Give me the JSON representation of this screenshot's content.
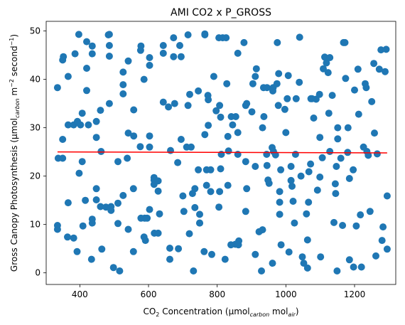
{
  "chart_data": {
    "type": "scatter",
    "title": "AMI CO2 x P_GROSS",
    "xlabel": "CO2 Concentration (µmol_carbon mol_air)",
    "ylabel": "Gross Canopy Photosynthesis (µmol_carbon m^-2 second^-1)",
    "xlim": [
      302,
      1320
    ],
    "ylim": [
      -2.4,
      52
    ],
    "xticks": [
      "400",
      "600",
      "800",
      "1000",
      "1200"
    ],
    "yticks": [
      "0",
      "10",
      "20",
      "30",
      "40",
      "50"
    ],
    "grid": false,
    "marker_color": "#1f77b4",
    "trend_color": "#ff0000",
    "trend": {
      "x": [
        335,
        1295
      ],
      "y": [
        25.0,
        24.8
      ]
    },
    "points": [
      [
        335,
        38.3
      ],
      [
        335,
        9.8
      ],
      [
        335,
        9.0
      ],
      [
        337,
        23.7
      ],
      [
        350,
        44.0
      ],
      [
        352,
        44.7
      ],
      [
        350,
        27.6
      ],
      [
        350,
        23.7
      ],
      [
        366,
        40.6
      ],
      [
        366,
        30.6
      ],
      [
        366,
        14.5
      ],
      [
        364,
        7.4
      ],
      [
        382,
        30.6
      ],
      [
        382,
        7.2
      ],
      [
        386,
        45.3
      ],
      [
        393,
        31.3
      ],
      [
        397,
        49.3
      ],
      [
        398,
        20.6
      ],
      [
        392,
        4.4
      ],
      [
        402,
        30.6
      ],
      [
        407,
        33.0
      ],
      [
        407,
        23.0
      ],
      [
        409,
        9.7
      ],
      [
        416,
        15.0
      ],
      [
        420,
        47.8
      ],
      [
        420,
        42.3
      ],
      [
        420,
        37.7
      ],
      [
        425,
        30.6
      ],
      [
        436,
        46.9
      ],
      [
        436,
        45.3
      ],
      [
        436,
        11.1
      ],
      [
        436,
        10.3
      ],
      [
        434,
        2.8
      ],
      [
        448,
        31.3
      ],
      [
        448,
        28.0
      ],
      [
        448,
        17.4
      ],
      [
        448,
        15.1
      ],
      [
        460,
        33.6
      ],
      [
        462,
        25.1
      ],
      [
        460,
        13.7
      ],
      [
        464,
        4.9
      ],
      [
        476,
        13.6
      ],
      [
        483,
        49.2
      ],
      [
        486,
        49.3
      ],
      [
        486,
        47.0
      ],
      [
        486,
        44.8
      ],
      [
        486,
        35.0
      ],
      [
        491,
        13.7
      ],
      [
        491,
        12.9
      ],
      [
        498,
        1.1
      ],
      [
        511,
        23.0
      ],
      [
        511,
        14.4
      ],
      [
        511,
        10.2
      ],
      [
        516,
        0.4
      ],
      [
        526,
        41.5
      ],
      [
        526,
        38.9
      ],
      [
        526,
        37.0
      ],
      [
        526,
        16.0
      ],
      [
        541,
        43.8
      ],
      [
        541,
        28.9
      ],
      [
        538,
        23.7
      ],
      [
        541,
        9.0
      ],
      [
        557,
        28.3
      ],
      [
        557,
        33.7
      ],
      [
        556,
        17.4
      ],
      [
        556,
        4.4
      ],
      [
        578,
        46.9
      ],
      [
        577,
        46.0
      ],
      [
        576,
        26.1
      ],
      [
        578,
        11.3
      ],
      [
        587,
        40.0
      ],
      [
        589,
        11.3
      ],
      [
        587,
        7.4
      ],
      [
        591,
        6.7
      ],
      [
        596,
        11.3
      ],
      [
        603,
        44.5
      ],
      [
        603,
        42.9
      ],
      [
        603,
        28.3
      ],
      [
        603,
        26.0
      ],
      [
        603,
        13.1
      ],
      [
        616,
        19.7
      ],
      [
        616,
        19.2
      ],
      [
        616,
        18.3
      ],
      [
        617,
        8.2
      ],
      [
        628,
        19.0
      ],
      [
        628,
        16.9
      ],
      [
        632,
        12.2
      ],
      [
        628,
        8.2
      ],
      [
        643,
        47.0
      ],
      [
        643,
        45.4
      ],
      [
        643,
        35.3
      ],
      [
        658,
        34.3
      ],
      [
        664,
        25.3
      ],
      [
        662,
        5.1
      ],
      [
        662,
        2.8
      ],
      [
        673,
        48.6
      ],
      [
        673,
        44.7
      ],
      [
        676,
        35.0
      ],
      [
        685,
        22.8
      ],
      [
        687,
        5.0
      ],
      [
        691,
        47.0
      ],
      [
        695,
        44.7
      ],
      [
        695,
        27.6
      ],
      [
        700,
        15.9
      ],
      [
        703,
        12.7
      ],
      [
        711,
        26.0
      ],
      [
        715,
        49.2
      ],
      [
        720,
        36.9
      ],
      [
        715,
        34.6
      ],
      [
        724,
        26.0
      ],
      [
        719,
        8.1
      ],
      [
        728,
        16.4
      ],
      [
        735,
        17.4
      ],
      [
        735,
        13.5
      ],
      [
        731,
        0.4
      ],
      [
        745,
        37.6
      ],
      [
        745,
        21.3
      ],
      [
        749,
        12.1
      ],
      [
        749,
        10.3
      ],
      [
        749,
        10.3
      ],
      [
        764,
        49.4
      ],
      [
        764,
        49.2
      ],
      [
        764,
        28.6
      ],
      [
        762,
        4.4
      ],
      [
        773,
        36.7
      ],
      [
        774,
        35.8
      ],
      [
        774,
        30.5
      ],
      [
        769,
        21.3
      ],
      [
        769,
        18.1
      ],
      [
        781,
        16.8
      ],
      [
        781,
        21.3
      ],
      [
        784,
        3.8
      ],
      [
        790,
        40.6
      ],
      [
        797,
        33.5
      ],
      [
        805,
        48.6
      ],
      [
        807,
        34.6
      ],
      [
        810,
        32.2
      ],
      [
        812,
        24.5
      ],
      [
        810,
        21.5
      ],
      [
        807,
        16.8
      ],
      [
        805,
        13.6
      ],
      [
        816,
        48.6
      ],
      [
        823,
        2.8
      ],
      [
        826,
        48.6
      ],
      [
        828,
        39.1
      ],
      [
        831,
        28.2
      ],
      [
        833,
        25.2
      ],
      [
        831,
        18.1
      ],
      [
        841,
        32.3
      ],
      [
        840,
        5.8
      ],
      [
        845,
        30.6
      ],
      [
        854,
        32.3
      ],
      [
        853,
        5.9
      ],
      [
        860,
        45.4
      ],
      [
        860,
        29.0
      ],
      [
        860,
        24.5
      ],
      [
        863,
        6.6
      ],
      [
        862,
        5.8
      ],
      [
        878,
        47.6
      ],
      [
        883,
        34.6
      ],
      [
        886,
        35.0
      ],
      [
        883,
        23.0
      ],
      [
        883,
        12.7
      ],
      [
        886,
        17.4
      ],
      [
        901,
        33.3
      ],
      [
        904,
        39.1
      ],
      [
        911,
        22.0
      ],
      [
        914,
        42.2
      ],
      [
        911,
        40.6
      ],
      [
        911,
        3.8
      ],
      [
        922,
        8.5
      ],
      [
        935,
        38.3
      ],
      [
        936,
        32.3
      ],
      [
        932,
        30.0
      ],
      [
        929,
        0.4
      ],
      [
        932,
        8.9
      ],
      [
        945,
        38.3
      ],
      [
        944,
        24.5
      ],
      [
        945,
        22.2
      ],
      [
        948,
        19.2
      ],
      [
        951,
        18.5
      ],
      [
        960,
        25.9
      ],
      [
        964,
        25.1
      ],
      [
        963,
        38.3
      ],
      [
        962,
        37.6
      ],
      [
        961,
        2.0
      ],
      [
        970,
        24.4
      ],
      [
        974,
        39.1
      ],
      [
        975,
        47.6
      ],
      [
        978,
        34.6
      ],
      [
        979,
        41.2
      ],
      [
        982,
        16.8
      ],
      [
        982,
        14.6
      ],
      [
        982,
        12.1
      ],
      [
        985,
        21.3
      ],
      [
        986,
        5.8
      ],
      [
        997,
        33.8
      ],
      [
        1000,
        29.0
      ],
      [
        1004,
        36.0
      ],
      [
        1007,
        40.8
      ],
      [
        1009,
        4.3
      ],
      [
        1015,
        22.0
      ],
      [
        1015,
        19.1
      ],
      [
        1018,
        17.9
      ],
      [
        1021,
        14.8
      ],
      [
        1025,
        10.3
      ],
      [
        1028,
        24.5
      ],
      [
        1030,
        36.0
      ],
      [
        1039,
        39.4
      ],
      [
        1040,
        48.7
      ],
      [
        1044,
        20.0
      ],
      [
        1048,
        3.3
      ],
      [
        1052,
        2.0
      ],
      [
        1060,
        12.2
      ],
      [
        1063,
        6.8
      ],
      [
        1063,
        1.0
      ],
      [
        1066,
        14.6
      ],
      [
        1067,
        20.9
      ],
      [
        1072,
        22.5
      ],
      [
        1073,
        36.0
      ],
      [
        1076,
        36.0
      ],
      [
        1081,
        32.0
      ],
      [
        1088,
        35.9
      ],
      [
        1092,
        17.1
      ],
      [
        1098,
        36.9
      ],
      [
        1099,
        28.0
      ],
      [
        1099,
        19.8
      ],
      [
        1101,
        3.3
      ],
      [
        1106,
        23.8
      ],
      [
        1109,
        42.2
      ],
      [
        1113,
        44.6
      ],
      [
        1118,
        43.4
      ],
      [
        1123,
        41.4
      ],
      [
        1125,
        33.0
      ],
      [
        1128,
        44.5
      ],
      [
        1128,
        25.1
      ],
      [
        1135,
        36.7
      ],
      [
        1140,
        10.4
      ],
      [
        1144,
        18.4
      ],
      [
        1145,
        16.4
      ],
      [
        1147,
        22.0
      ],
      [
        1149,
        0.4
      ],
      [
        1151,
        30.0
      ],
      [
        1151,
        27.7
      ],
      [
        1160,
        23.7
      ],
      [
        1165,
        9.8
      ],
      [
        1168,
        47.6
      ],
      [
        1172,
        47.6
      ],
      [
        1174,
        40.2
      ],
      [
        1180,
        24.9
      ],
      [
        1181,
        30.0
      ],
      [
        1185,
        19.5
      ],
      [
        1185,
        2.7
      ],
      [
        1196,
        21.3
      ],
      [
        1197,
        1.2
      ],
      [
        1200,
        37.8
      ],
      [
        1205,
        9.7
      ],
      [
        1210,
        42.1
      ],
      [
        1212,
        32.8
      ],
      [
        1217,
        12.0
      ],
      [
        1220,
        1.2
      ],
      [
        1226,
        26.0
      ],
      [
        1231,
        39.1
      ],
      [
        1234,
        38.3
      ],
      [
        1236,
        25.1
      ],
      [
        1240,
        24.3
      ],
      [
        1245,
        12.7
      ],
      [
        1250,
        35.4
      ],
      [
        1256,
        43.3
      ],
      [
        1258,
        28.9
      ],
      [
        1262,
        3.5
      ],
      [
        1266,
        24.6
      ],
      [
        1272,
        42.1
      ],
      [
        1277,
        46.1
      ],
      [
        1280,
        6.7
      ],
      [
        1283,
        9.5
      ],
      [
        1289,
        41.6
      ],
      [
        1292,
        46.2
      ],
      [
        1295,
        4.9
      ],
      [
        1295,
        15.9
      ]
    ]
  }
}
